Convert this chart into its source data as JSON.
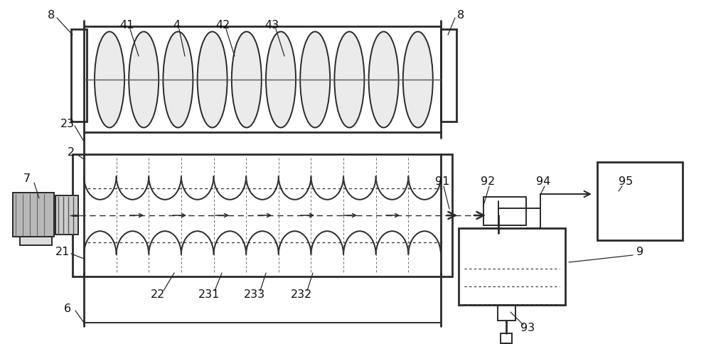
{
  "bg_color": "#ffffff",
  "line_color": "#2a2a2a",
  "lw": 1.4,
  "lw2": 2.0,
  "figsize": [
    10.0,
    4.85
  ],
  "dpi": 100
}
